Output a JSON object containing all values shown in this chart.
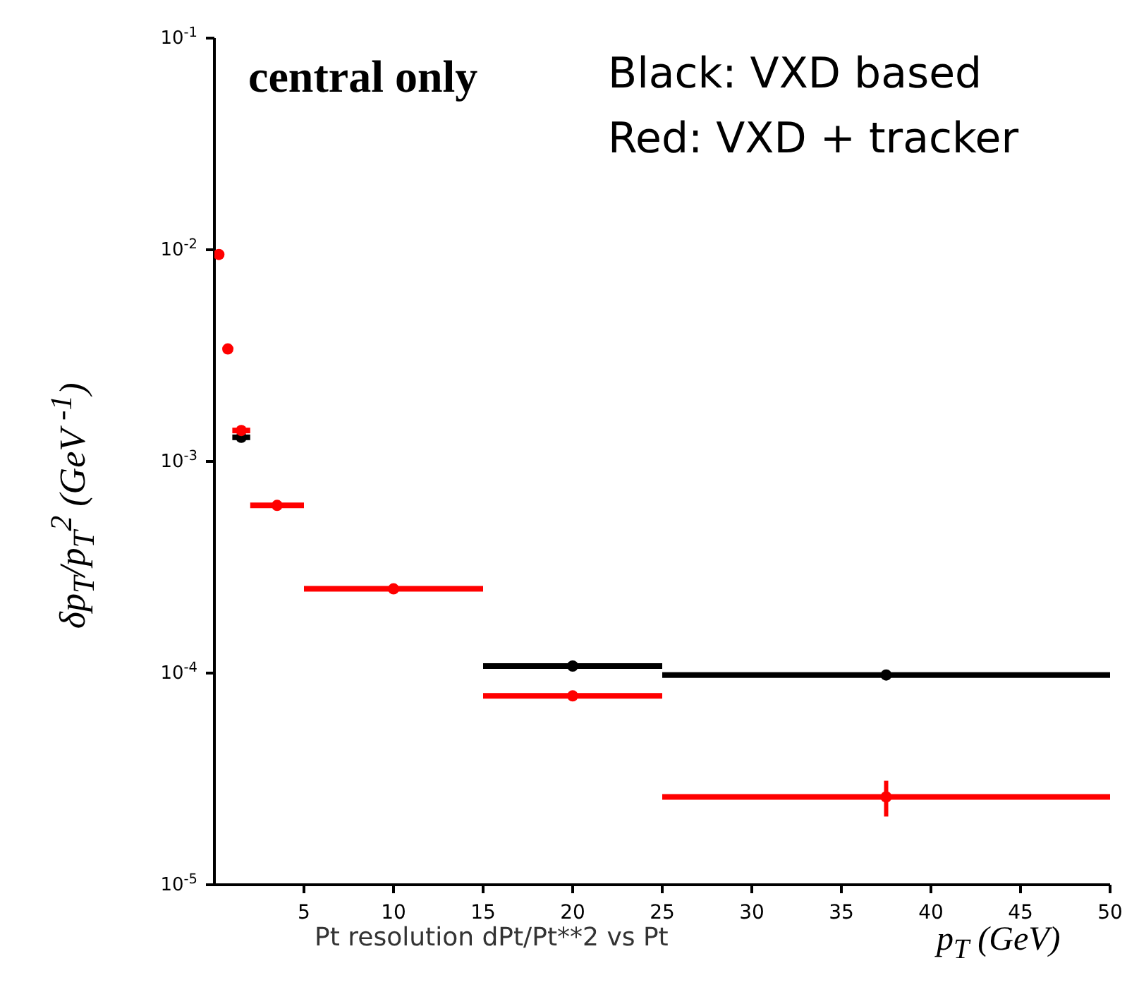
{
  "chart_data": {
    "type": "scatter",
    "x": [
      0.25,
      0.75,
      1.5,
      3.5,
      10,
      20,
      37.5
    ],
    "series": [
      {
        "color": "#000000",
        "values": [
          null,
          null,
          0.0013,
          null,
          null,
          0.000108,
          9.8e-05
        ],
        "xerrors": [
          null,
          null,
          0.5,
          null,
          null,
          5,
          12.5
        ]
      },
      {
        "color": "#ff0000",
        "values": [
          0.0095,
          0.0034,
          0.0014,
          0.00062,
          0.00025,
          7.8e-05,
          2.6e-05
        ],
        "xerrors": [
          0.25,
          0.25,
          0.5,
          1.5,
          5,
          5,
          12.5
        ],
        "errors": [
          null,
          null,
          null,
          null,
          null,
          2e-06,
          5e-06
        ]
      }
    ],
    "xlim": [
      0,
      50
    ],
    "xticks": [
      5,
      10,
      15,
      20,
      25,
      30,
      35,
      40,
      45,
      50
    ],
    "log": "y",
    "ylim": [
      1e-05,
      0.1
    ],
    "yticks": [
      {
        "value": 1e-05,
        "label": "10$^{-5}$"
      },
      {
        "value": 0.0001,
        "label": "10$^{-4}$"
      },
      {
        "value": 0.001,
        "label": "10$^{-3}$"
      },
      {
        "value": 0.01,
        "label": "10$^{-2}$"
      },
      {
        "value": 0.1,
        "label": "10$^{-1}$"
      }
    ],
    "xlabel": "p$_{T}$ (GeV)",
    "ylabel": "δp$_{T}$/p$_{T}$$^{2}$ (GeV $^{-1}$)",
    "marker": "circle",
    "grid": false,
    "legend": false,
    "annotations": [
      "central only",
      "Black: VXD based",
      "Red: VXD + tracker",
      "Pt resolution dPt/Pt**2 vs Pt"
    ]
  }
}
